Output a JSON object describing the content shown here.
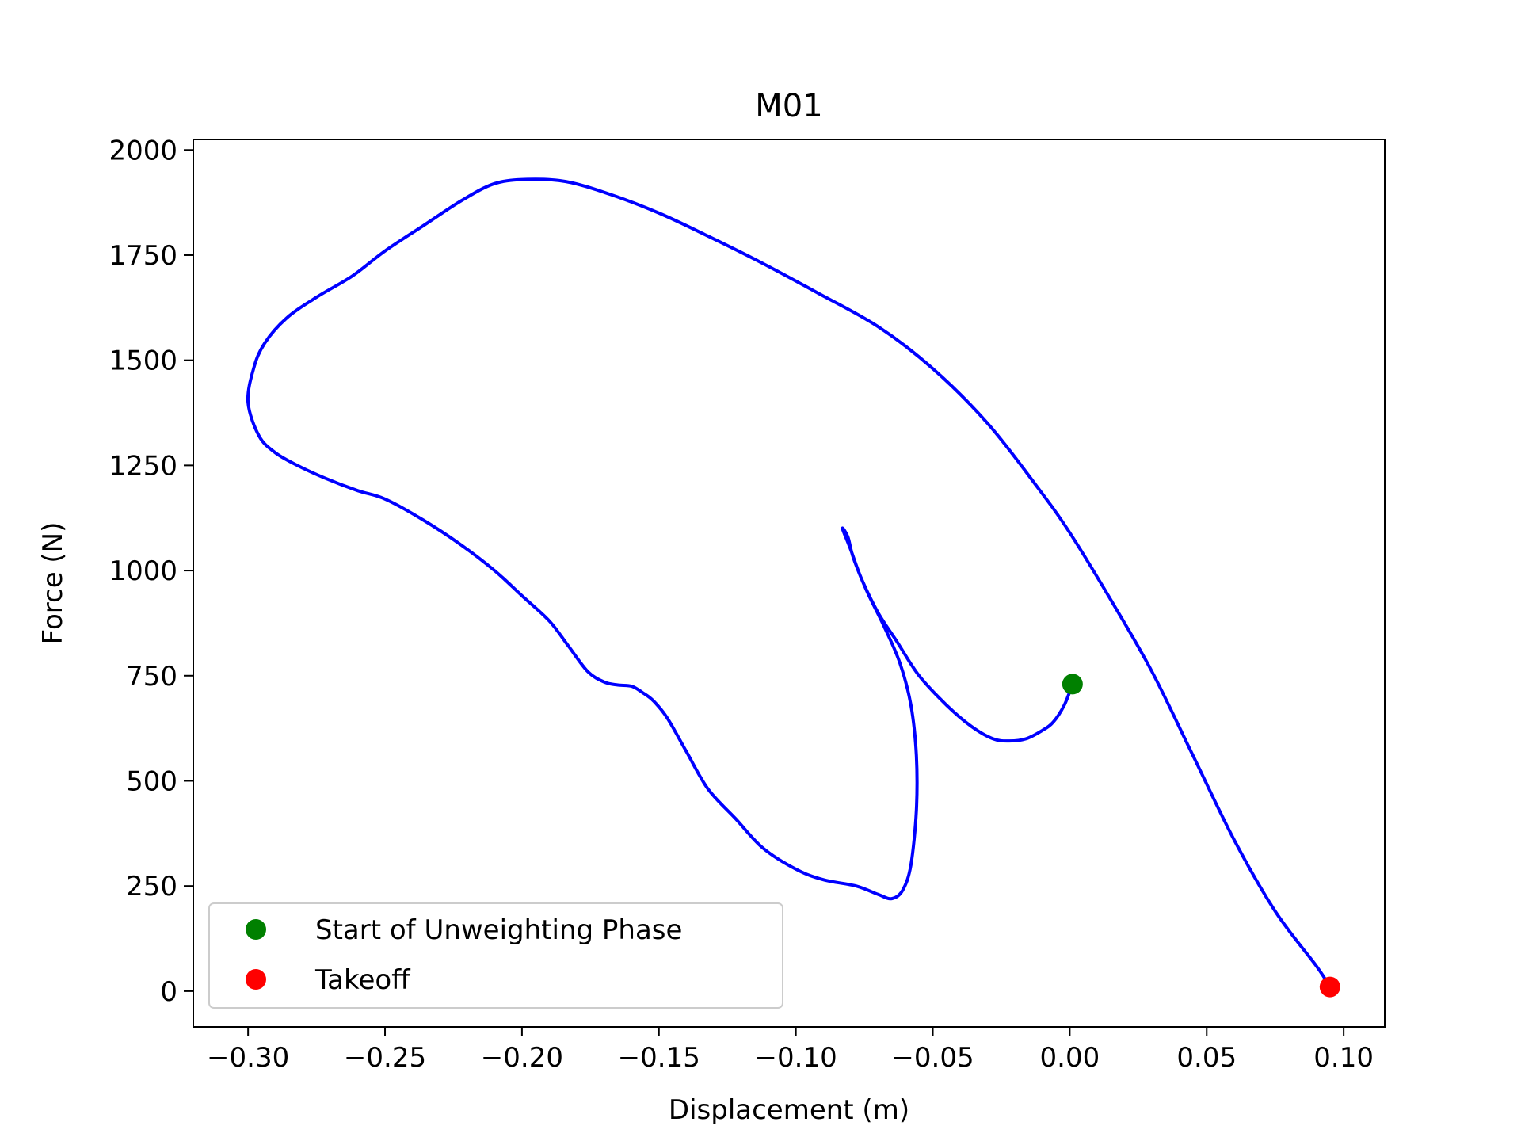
{
  "chart_data": {
    "type": "line",
    "title": "M01",
    "xlabel": "Displacement (m)",
    "ylabel": "Force (N)",
    "xlim": [
      -0.32,
      0.115
    ],
    "ylim": [
      -85,
      2025
    ],
    "xticks": [
      -0.3,
      -0.25,
      -0.2,
      -0.15,
      -0.1,
      -0.05,
      0.0,
      0.05,
      0.1
    ],
    "xtick_labels": [
      "−0.30",
      "−0.25",
      "−0.20",
      "−0.15",
      "−0.10",
      "−0.05",
      "0.00",
      "0.05",
      "0.10"
    ],
    "yticks": [
      0,
      250,
      500,
      750,
      1000,
      1250,
      1500,
      1750,
      2000
    ],
    "ytick_labels": [
      "0",
      "250",
      "500",
      "750",
      "1000",
      "1250",
      "1500",
      "1750",
      "2000"
    ],
    "grid": false,
    "legend_position": "lower-left",
    "series": [
      {
        "color": "#0000ff",
        "x": [
          0.001,
          -0.002,
          -0.006,
          -0.01,
          -0.016,
          -0.022,
          -0.028,
          -0.036,
          -0.045,
          -0.055,
          -0.063,
          -0.07,
          -0.076,
          -0.08,
          -0.083,
          -0.081,
          -0.079,
          -0.074,
          -0.068,
          -0.062,
          -0.058,
          -0.056,
          -0.056,
          -0.058,
          -0.061,
          -0.065,
          -0.07,
          -0.078,
          -0.09,
          -0.1,
          -0.112,
          -0.122,
          -0.132,
          -0.14,
          -0.147,
          -0.152,
          -0.156,
          -0.16,
          -0.165,
          -0.17,
          -0.176,
          -0.183,
          -0.19,
          -0.2,
          -0.21,
          -0.222,
          -0.236,
          -0.25,
          -0.26,
          -0.272,
          -0.282,
          -0.29,
          -0.296,
          -0.3,
          -0.298,
          -0.294,
          -0.286,
          -0.275,
          -0.262,
          -0.25,
          -0.236,
          -0.222,
          -0.21,
          -0.198,
          -0.184,
          -0.168,
          -0.15,
          -0.132,
          -0.112,
          -0.092,
          -0.07,
          -0.05,
          -0.03,
          -0.012,
          0.0,
          0.015,
          0.03,
          0.045,
          0.06,
          0.075,
          0.09,
          0.095
        ],
        "y": [
          730,
          680,
          640,
          620,
          600,
          595,
          600,
          630,
          680,
          750,
          830,
          900,
          980,
          1050,
          1100,
          1080,
          1030,
          950,
          870,
          780,
          680,
          560,
          430,
          300,
          240,
          220,
          230,
          250,
          265,
          290,
          340,
          410,
          480,
          570,
          650,
          690,
          710,
          725,
          728,
          735,
          760,
          820,
          880,
          940,
          1000,
          1060,
          1120,
          1170,
          1190,
          1220,
          1250,
          1280,
          1320,
          1400,
          1480,
          1540,
          1600,
          1650,
          1700,
          1760,
          1820,
          1880,
          1920,
          1930,
          1925,
          1895,
          1850,
          1795,
          1730,
          1660,
          1580,
          1480,
          1350,
          1200,
          1090,
          930,
          760,
          560,
          360,
          190,
          60,
          10
        ]
      }
    ],
    "markers": [
      {
        "name": "Start of Unweighting Phase",
        "x": 0.001,
        "y": 730,
        "color": "#008000"
      },
      {
        "name": "Takeoff",
        "x": 0.095,
        "y": 10,
        "color": "#ff0000"
      }
    ]
  },
  "legend": {
    "items": [
      {
        "label": "Start of Unweighting Phase",
        "color": "#008000"
      },
      {
        "label": "Takeoff",
        "color": "#ff0000"
      }
    ]
  }
}
